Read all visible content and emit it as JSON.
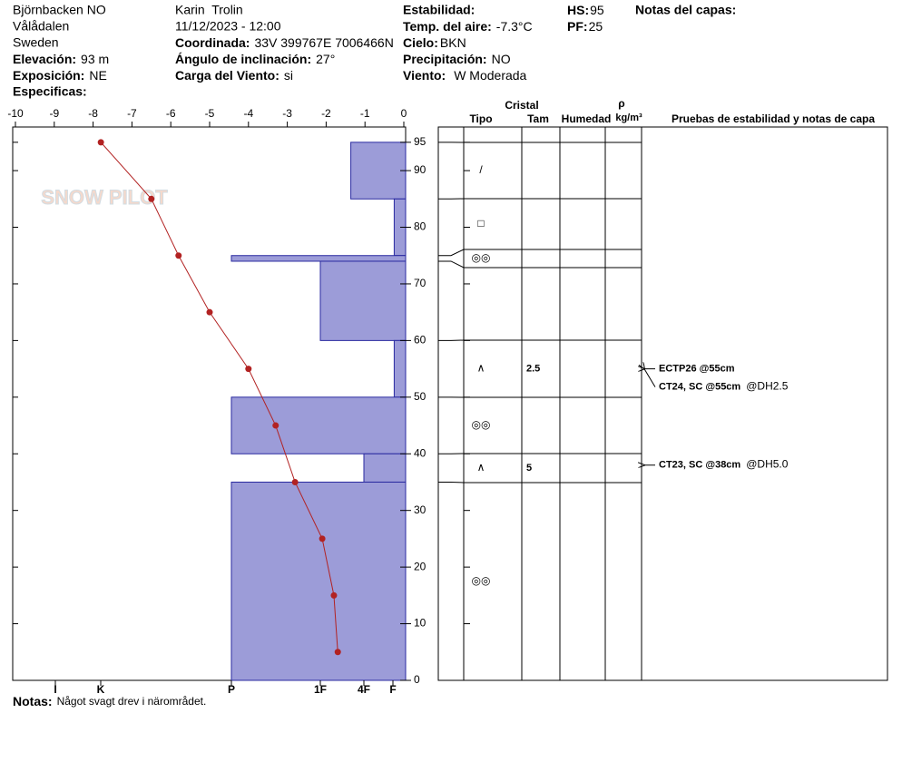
{
  "header": {
    "location": "Björnbacken NO",
    "region": "Vålådalen",
    "country": "Sweden",
    "elevation": {
      "label": "Elevación:",
      "value": "93 m"
    },
    "aspect": {
      "label": "Exposición:",
      "value": "NE"
    },
    "specifics_label": "Especificas:",
    "observer": "Karin  Trolin",
    "datetime": "11/12/2023 - 12:00",
    "coordinates": {
      "label": "Coordinada:",
      "value": "33V 399767E 7006466N"
    },
    "slope": {
      "label": "Ángulo de inclinación:",
      "value": "27°"
    },
    "wind_loading": {
      "label": "Carga del Viento:",
      "value": "si"
    },
    "stability_label": "Estabilidad:",
    "air_temp": {
      "label": "Temp. del aire:",
      "value": "-7.3°C"
    },
    "sky": {
      "label": "Cielo:",
      "value": "BKN"
    },
    "precipitation": {
      "label": "Precipitación:",
      "value": "NO"
    },
    "wind": {
      "label": "Viento:",
      "value": "W Moderada"
    },
    "hs": {
      "label": "HS:",
      "value": 95
    },
    "pf": {
      "label": "PF:",
      "value": 25
    },
    "layer_notes_label": "Notas del capas:"
  },
  "chart_data": {
    "type": "snow-profile",
    "watermark": "SNOW PILOT",
    "ylim": [
      0,
      97.7
    ],
    "yticks": [
      0,
      10,
      20,
      30,
      40,
      50,
      60,
      70,
      80,
      90,
      95
    ],
    "temperature": {
      "xlim": [
        -10,
        0
      ],
      "xticks": [
        -10,
        -9,
        -8,
        -7,
        -6,
        -5,
        -4,
        -3,
        -2,
        -1,
        0
      ],
      "heights": [
        95,
        85,
        75,
        65,
        55,
        45,
        35,
        25,
        15,
        5
      ],
      "values": [
        -7.8,
        -6.5,
        -5.8,
        -5.0,
        -4.0,
        -3.3,
        -2.8,
        -2.1,
        -1.8,
        -1.7
      ],
      "color": "#b22222"
    },
    "hardness_ticks": [
      {
        "value": 6,
        "label": "I"
      },
      {
        "value": 5,
        "label": "K"
      },
      {
        "value": 4,
        "label": "P"
      },
      {
        "value": 3,
        "label": "1F"
      },
      {
        "value": 2,
        "label": "4F"
      },
      {
        "value": 1,
        "label": "F"
      }
    ],
    "hardness_color": "#9c9cd8",
    "layers": [
      {
        "top": 95,
        "bottom": 85,
        "hardness": 2.3
      },
      {
        "top": 85,
        "bottom": 75,
        "hardness": 0.9
      },
      {
        "top": 75,
        "bottom": 74,
        "hardness": 4
      },
      {
        "top": 74,
        "bottom": 60,
        "hardness": 3
      },
      {
        "top": 60,
        "bottom": 50,
        "hardness": 0.9
      },
      {
        "top": 50,
        "bottom": 40,
        "hardness": 4
      },
      {
        "top": 40,
        "bottom": 35,
        "hardness": 2
      },
      {
        "top": 35,
        "bottom": 0,
        "hardness": 4
      }
    ]
  },
  "table": {
    "headers": {
      "crystal": "Cristal",
      "type": "Tipo",
      "size": "Tam",
      "moisture": "Humedad",
      "density": "ρ",
      "density_unit": "kg/m³",
      "tests": "Pruebas de estabilidad y notas de capa"
    },
    "rows": [
      {
        "grain": "/"
      },
      {
        "grain": "□"
      },
      {
        "grain": "◎◎"
      },
      {},
      {
        "grain": "∧",
        "size": 2.5
      },
      {
        "grain": "◎◎"
      },
      {
        "grain": "∧",
        "size": 5
      },
      {
        "grain": "◎◎"
      }
    ],
    "tests": [
      {
        "height": 55,
        "text": "ECTP26 @55cm"
      },
      {
        "height": 55,
        "text": "CT24, SC @55cm",
        "extra": "@DH2.5"
      },
      {
        "height": 38,
        "text": "CT23, SC @38cm",
        "extra": "@DH5.0"
      }
    ]
  },
  "notes": {
    "label": "Notas:",
    "text": "Något svagt drev i närområdet."
  }
}
